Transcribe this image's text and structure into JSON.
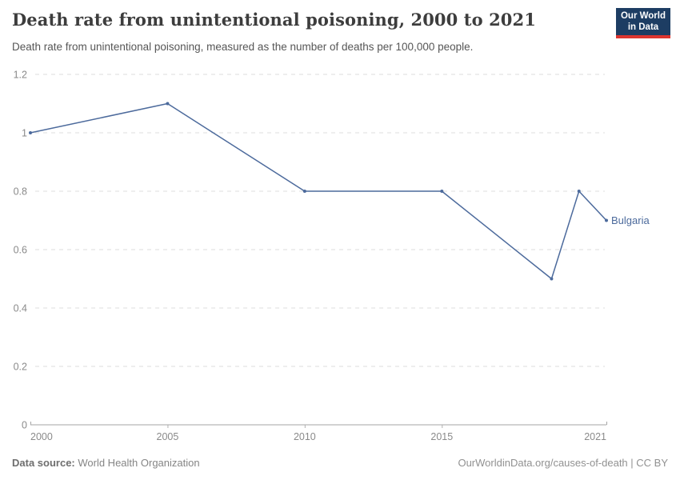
{
  "header": {
    "title": "Death rate from unintentional poisoning, 2000 to 2021",
    "subtitle": "Death rate from unintentional poisoning, measured as the number of deaths per 100,000 people.",
    "logo": {
      "line1": "Our World",
      "line2": "in Data",
      "bg_color": "#1d3d63",
      "accent_color": "#dc352f"
    }
  },
  "chart_data": {
    "type": "line",
    "title": "Death rate from unintentional poisoning, 2000 to 2021",
    "subtitle": "Death rate from unintentional poisoning, measured as the number of deaths per 100,000 people.",
    "xlabel": "",
    "ylabel": "",
    "xlim": [
      2000,
      2021
    ],
    "ylim": [
      0,
      1.2
    ],
    "grid": "horizontal-dashed",
    "legend_position": "end-of-line-label",
    "series": [
      {
        "name": "Bulgaria",
        "color": "#4C6A9C",
        "x": [
          2000,
          2005,
          2010,
          2015,
          2019,
          2020,
          2021
        ],
        "values": [
          1.0,
          1.1,
          0.8,
          0.8,
          0.5,
          0.8,
          0.7
        ]
      }
    ],
    "yticks": [
      {
        "v": 0,
        "label": "0"
      },
      {
        "v": 0.2,
        "label": "0.2"
      },
      {
        "v": 0.4,
        "label": "0.4"
      },
      {
        "v": 0.6,
        "label": "0.6"
      },
      {
        "v": 0.8,
        "label": "0.8"
      },
      {
        "v": 1,
        "label": "1"
      },
      {
        "v": 1.2,
        "label": "1.2"
      }
    ],
    "xticks": [
      {
        "v": 2000,
        "label": "2000"
      },
      {
        "v": 2005,
        "label": "2005"
      },
      {
        "v": 2010,
        "label": "2010"
      },
      {
        "v": 2015,
        "label": "2015"
      },
      {
        "v": 2021,
        "label": "2021"
      }
    ],
    "colors": {
      "gridline": "#dedede",
      "axis_line": "#a5a5a5",
      "tick": "#b0b0b0",
      "axis_text": "#8a8a8a"
    }
  },
  "footer": {
    "source_prefix": "Data source:",
    "source_text": " World Health Organization",
    "right_text": "OurWorldinData.org/causes-of-death | CC BY"
  }
}
